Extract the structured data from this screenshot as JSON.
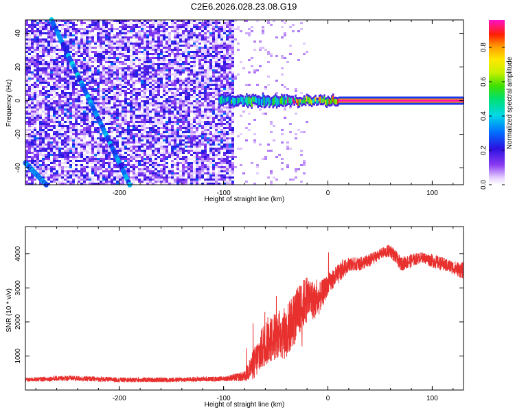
{
  "page_title": "C2E6.2026.028.23.08.G19",
  "chart_data": [
    {
      "type": "heatmap",
      "title": "C2E6.2026.028.23.08.G19",
      "xlabel": "Height of straight line (km)",
      "ylabel": "Frequency (Hz)",
      "xlim": [
        -290,
        130
      ],
      "ylim": [
        -50,
        48
      ],
      "x_ticks": [
        -200,
        -100,
        0,
        100
      ],
      "x_tick_labels": [
        "-200",
        "-100",
        "0",
        "100"
      ],
      "y_ticks": [
        -40,
        -20,
        0,
        20,
        40
      ],
      "y_tick_labels": [
        "-40",
        "-20",
        "0",
        "20",
        "40"
      ],
      "colorbar": {
        "label": "Normalized spectral amplitude",
        "range": [
          0,
          0.96
        ],
        "ticks": [
          0,
          0.2,
          0.4,
          0.6,
          0.8
        ],
        "tick_labels": [
          "0.0",
          "0.2",
          "0.4",
          "0.6",
          "0.8"
        ],
        "colormap": "rainbow (white-purple-blue-cyan-green-yellow-red-magenta)"
      },
      "features": [
        {
          "name": "noisy background",
          "x_range": [
            -290,
            -90
          ],
          "y_range": [
            -50,
            48
          ],
          "amplitude": "0.0-0.3"
        },
        {
          "name": "diagonal streak 1",
          "x_start": -265,
          "y_start": 48,
          "x_end": -190,
          "y_end": -50,
          "amplitude": "0.2-0.4"
        },
        {
          "name": "diagonal streak 2",
          "x_start": -290,
          "y_start": -37,
          "x_end": -270,
          "y_end": -50,
          "amplitude": "0.2"
        },
        {
          "name": "direct signal band",
          "x_range": [
            -105,
            130
          ],
          "y_center": 0,
          "amplitude_peak": 0.95
        }
      ],
      "grid": false,
      "legend": "none"
    },
    {
      "type": "line",
      "xlabel": "Height of straight line (km)",
      "ylabel": "SNR (10 * v/v)",
      "xlim": [
        -290,
        130
      ],
      "ylim": [
        0,
        4800
      ],
      "x_ticks": [
        -200,
        -100,
        0,
        100
      ],
      "x_tick_labels": [
        "-200",
        "-100",
        "0",
        "100"
      ],
      "y_ticks": [
        1000,
        2000,
        3000,
        4000
      ],
      "y_tick_labels": [
        "1000",
        "2000",
        "3000",
        "4000"
      ],
      "color": "#e8312f",
      "series": [
        {
          "x": [
            -290,
            -250,
            -200,
            -150,
            -100,
            -80,
            -70,
            -60,
            -50,
            -40,
            -30,
            -20,
            -10,
            0,
            10,
            20,
            30,
            40,
            50,
            60,
            70,
            80,
            90,
            100,
            110,
            120,
            130
          ],
          "y": [
            300,
            350,
            300,
            300,
            330,
            400,
            800,
            1400,
            1600,
            1700,
            2200,
            2700,
            2600,
            3100,
            3400,
            3700,
            3700,
            3800,
            4000,
            4100,
            3700,
            3800,
            3900,
            3800,
            3700,
            3600,
            3500
          ],
          "noise": [
            60,
            80,
            70,
            70,
            70,
            150,
            500,
            700,
            700,
            800,
            800,
            700,
            500,
            300,
            300,
            200,
            200,
            200,
            150,
            200,
            200,
            200,
            150,
            200,
            200,
            200,
            250
          ]
        }
      ],
      "grid": false,
      "legend": "none"
    }
  ]
}
